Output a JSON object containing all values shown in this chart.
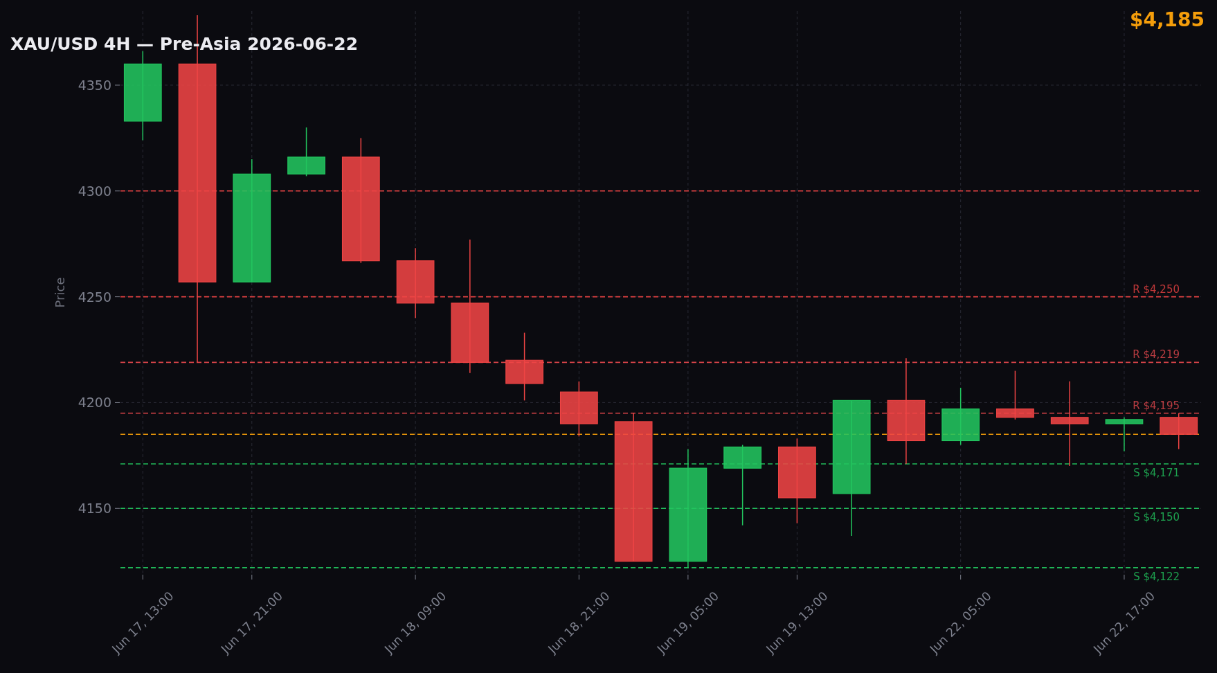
{
  "chart_data": {
    "type": "candlestick",
    "title": "XAU/USD 4H — Pre-Asia 2026-06-22",
    "ylabel": "Price",
    "categories": [
      "Jun 17, 13:00",
      null,
      "Jun 17, 21:00",
      null,
      null,
      "Jun 18, 09:00",
      null,
      null,
      "Jun 18, 21:00",
      null,
      "Jun 19, 05:00",
      null,
      "Jun 19, 13:00",
      null,
      null,
      "Jun 22, 05:00",
      null,
      null,
      "Jun 22, 17:00",
      null
    ],
    "ohlc": [
      [
        4333,
        4366,
        4324,
        4360
      ],
      [
        4360,
        4383,
        4219,
        4257
      ],
      [
        4257,
        4315,
        4257,
        4308
      ],
      [
        4308,
        4330,
        4307,
        4316
      ],
      [
        4316,
        4325,
        4266,
        4267
      ],
      [
        4267,
        4273,
        4240,
        4247
      ],
      [
        4247,
        4277,
        4214,
        4219
      ],
      [
        4220,
        4233,
        4201,
        4209
      ],
      [
        4205,
        4210,
        4184,
        4190
      ],
      [
        4191,
        4195,
        4125,
        4125
      ],
      [
        4125,
        4178,
        4122,
        4169
      ],
      [
        4169,
        4180,
        4142,
        4179
      ],
      [
        4179,
        4183,
        4143,
        4155
      ],
      [
        4157,
        4201,
        4137,
        4201
      ],
      [
        4201,
        4221,
        4171,
        4182
      ],
      [
        4182,
        4207,
        4180,
        4197
      ],
      [
        4197,
        4215,
        4192,
        4193
      ],
      [
        4193,
        4210,
        4170,
        4190
      ],
      [
        4190,
        4193,
        4177,
        4192
      ],
      [
        4193,
        4195,
        4178,
        4185
      ]
    ],
    "colors": [
      "#22c55e",
      "#ef4444",
      "#22c55e",
      "#22c55e",
      "#ef4444",
      "#ef4444",
      "#ef4444",
      "#ef4444",
      "#ef4444",
      "#ef4444",
      "#22c55e",
      "#22c55e",
      "#ef4444",
      "#22c55e",
      "#ef4444",
      "#22c55e",
      "#ef4444",
      "#ef4444",
      "#22c55e",
      "#ef4444"
    ],
    "ylim": [
      4119,
      4385
    ],
    "yticks": [
      4150,
      4200,
      4250,
      4300,
      4350
    ],
    "grid": true,
    "ref_lines": [
      {
        "axis": "y",
        "value": 4300,
        "color": "#ef4444",
        "line_style": "dashed"
      },
      {
        "axis": "y",
        "value": 4250,
        "label": "R $4,250",
        "color": "#ef4444",
        "line_style": "dashed"
      },
      {
        "axis": "y",
        "value": 4219,
        "label": "R $4,219",
        "color": "#e5484d",
        "line_style": "dashed"
      },
      {
        "axis": "y",
        "value": 4195,
        "label": "R $4,195",
        "color": "#e5484d",
        "line_style": "dashed"
      },
      {
        "axis": "y",
        "value": 4185,
        "label": "$4,185",
        "color": "#f59e0b",
        "line_style": "dashed"
      },
      {
        "axis": "y",
        "value": 4171,
        "label": "S $4,171",
        "color": "#22c55e",
        "line_style": "dashed"
      },
      {
        "axis": "y",
        "value": 4150,
        "label": "S $4,150",
        "color": "#22c55e",
        "line_style": "dashed"
      },
      {
        "axis": "y",
        "value": 4122,
        "label": "S $4,122",
        "color": "#22c55e",
        "line_style": "dashed"
      }
    ]
  }
}
